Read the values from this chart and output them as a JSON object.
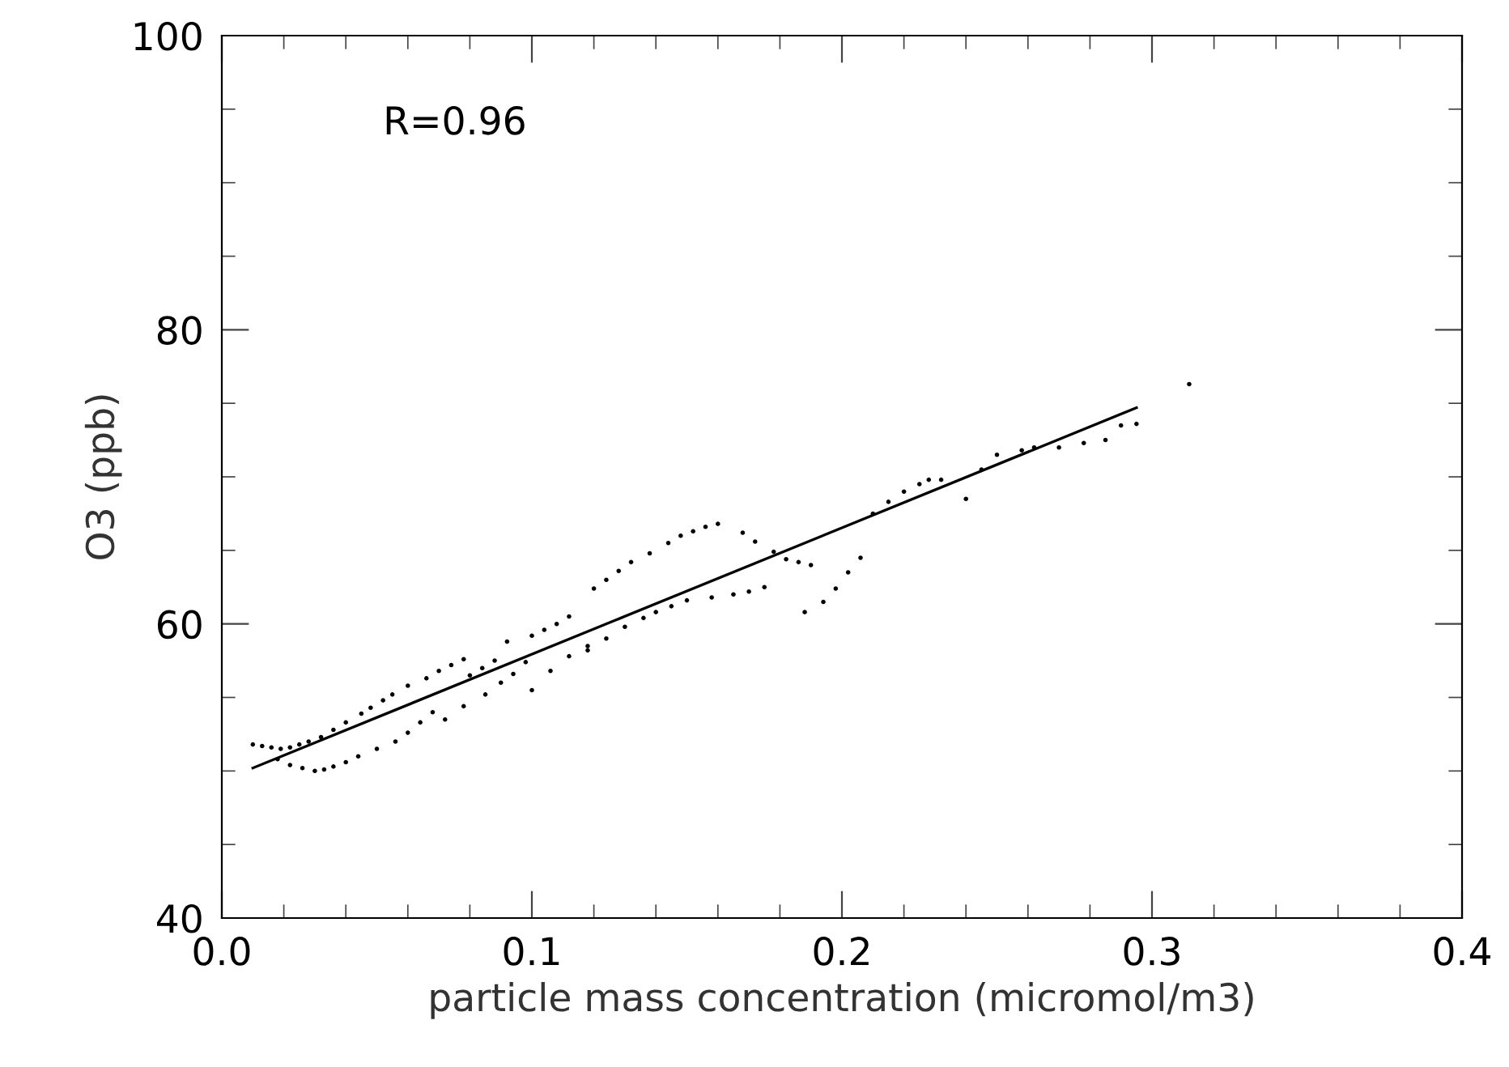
{
  "chart_data": {
    "type": "scatter",
    "xlabel": "particle mass concentration (micromol/m3)",
    "ylabel": "O3 (ppb)",
    "xlim": [
      0.0,
      0.4
    ],
    "xticks": [
      {
        "value": 0.0,
        "label": "0.0"
      },
      0.1,
      0.2,
      0.3,
      0.4
    ],
    "ylim": [
      40,
      100
    ],
    "yticks": [
      40,
      60,
      80,
      100
    ],
    "annotations": [
      "R=0.96"
    ],
    "grid": false,
    "legend": false,
    "series": [
      {
        "color": "#000000",
        "marker": "circle",
        "x": [
          0.01,
          0.013,
          0.016,
          0.019,
          0.022,
          0.025,
          0.028,
          0.018,
          0.022,
          0.026,
          0.03,
          0.033,
          0.036,
          0.04,
          0.044,
          0.032,
          0.036,
          0.04,
          0.045,
          0.048,
          0.052,
          0.055,
          0.05,
          0.056,
          0.06,
          0.064,
          0.068,
          0.06,
          0.066,
          0.07,
          0.074,
          0.078,
          0.08,
          0.084,
          0.088,
          0.072,
          0.078,
          0.085,
          0.09,
          0.094,
          0.098,
          0.092,
          0.1,
          0.104,
          0.108,
          0.112,
          0.1,
          0.106,
          0.112,
          0.118,
          0.12,
          0.124,
          0.128,
          0.132,
          0.118,
          0.124,
          0.13,
          0.136,
          0.14,
          0.138,
          0.144,
          0.148,
          0.152,
          0.156,
          0.16,
          0.145,
          0.15,
          0.158,
          0.165,
          0.17,
          0.175,
          0.168,
          0.172,
          0.178,
          0.182,
          0.186,
          0.19,
          0.188,
          0.194,
          0.198,
          0.202,
          0.206,
          0.21,
          0.215,
          0.22,
          0.225,
          0.228,
          0.232,
          0.24,
          0.245,
          0.25,
          0.258,
          0.262,
          0.27,
          0.278,
          0.285,
          0.29,
          0.295,
          0.312
        ],
        "values": [
          51.8,
          51.7,
          51.6,
          51.5,
          51.6,
          51.8,
          52.0,
          50.8,
          50.4,
          50.2,
          50.0,
          50.1,
          50.3,
          50.6,
          51.0,
          52.3,
          52.8,
          53.3,
          53.9,
          54.3,
          54.8,
          55.2,
          51.5,
          52.0,
          52.6,
          53.3,
          54.0,
          55.8,
          56.3,
          56.8,
          57.2,
          57.6,
          56.5,
          57.0,
          57.5,
          53.5,
          54.4,
          55.2,
          56.0,
          56.6,
          57.4,
          58.8,
          59.2,
          59.6,
          60.0,
          60.5,
          55.5,
          56.8,
          57.8,
          58.5,
          62.4,
          63.0,
          63.6,
          64.2,
          58.2,
          59.0,
          59.8,
          60.4,
          60.8,
          64.8,
          65.5,
          66.0,
          66.3,
          66.6,
          66.8,
          61.2,
          61.6,
          61.8,
          62.0,
          62.2,
          62.5,
          66.2,
          65.6,
          64.9,
          64.4,
          64.2,
          64.0,
          60.8,
          61.5,
          62.4,
          63.5,
          64.5,
          67.5,
          68.3,
          69.0,
          69.5,
          69.8,
          69.8,
          68.5,
          70.5,
          71.5,
          71.8,
          72.0,
          72.0,
          72.3,
          72.5,
          73.5,
          73.6,
          76.3
        ]
      },
      {
        "type": "line",
        "color": "#000000",
        "marker": "none",
        "x": [
          0.01,
          0.295
        ],
        "values": [
          50.2,
          74.7
        ]
      }
    ]
  }
}
